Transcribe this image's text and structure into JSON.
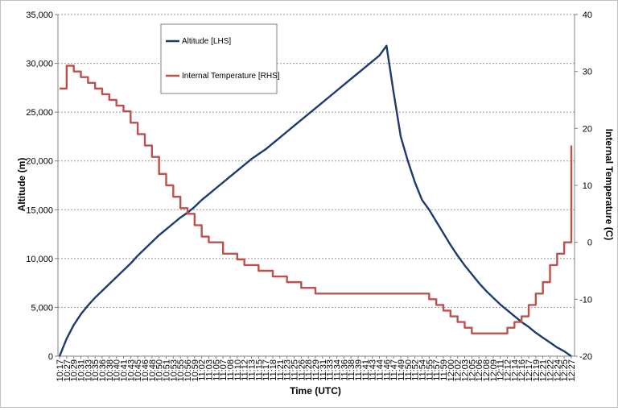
{
  "chart_data": {
    "type": "line",
    "xlabel": "Time (UTC)",
    "ylabel": "Altitude (m)",
    "y2label": "Internal Temperature (C)",
    "ylim": [
      0,
      35000
    ],
    "y2lim": [
      -20,
      40
    ],
    "yticks": [
      "0",
      "5,000",
      "10,000",
      "15,000",
      "20,000",
      "25,000",
      "30,000",
      "35,000"
    ],
    "y2ticks": [
      "-20",
      "-10",
      "0",
      "10",
      "20",
      "30",
      "40"
    ],
    "grid": true,
    "legend": "top-left",
    "x_ticks": [
      "10:17",
      "10:27",
      "10:29",
      "10:31",
      "10:33",
      "10:35",
      "10:36",
      "10:38",
      "10:40",
      "10:41",
      "10:43",
      "10:45",
      "10:46",
      "10:48",
      "10:50",
      "10:51",
      "10:53",
      "10:55",
      "10:56",
      "10:59",
      "11:02",
      "11:03",
      "11:05",
      "11:07",
      "11:08",
      "11:10",
      "11:12",
      "11:13",
      "11:15",
      "11:17",
      "11:18",
      "11:21",
      "11:23",
      "11:25",
      "11:26",
      "11:28",
      "11:29",
      "11:31",
      "11:33",
      "11:34",
      "11:36",
      "11:38",
      "11:39",
      "11:41",
      "11:43",
      "11:44",
      "11:46",
      "11:47",
      "11:49",
      "11:50",
      "11:52",
      "11:54",
      "11:55",
      "11:57",
      "11:59",
      "12:00",
      "12:02",
      "12:03",
      "12:05",
      "12:06",
      "12:08",
      "12:09",
      "12:11",
      "12:12",
      "12:14",
      "12:16",
      "12:17",
      "12:19",
      "12:21",
      "12:22",
      "12:24",
      "12:25",
      "12:27"
    ],
    "series": [
      {
        "name": "Altitude [LHS]",
        "axis": "left",
        "color": "#1f3a6e",
        "points": [
          [
            "10:17",
            0
          ],
          [
            "10:27",
            1800
          ],
          [
            "10:29",
            3200
          ],
          [
            "10:31",
            4300
          ],
          [
            "10:33",
            5200
          ],
          [
            "10:35",
            6000
          ],
          [
            "10:36",
            6700
          ],
          [
            "10:38",
            7400
          ],
          [
            "10:40",
            8100
          ],
          [
            "10:41",
            8800
          ],
          [
            "10:43",
            9500
          ],
          [
            "10:45",
            10300
          ],
          [
            "10:46",
            11000
          ],
          [
            "10:48",
            11700
          ],
          [
            "10:50",
            12400
          ],
          [
            "10:51",
            13000
          ],
          [
            "10:53",
            13600
          ],
          [
            "10:55",
            14200
          ],
          [
            "10:56",
            14700
          ],
          [
            "10:59",
            15300
          ],
          [
            "11:02",
            16000
          ],
          [
            "11:03",
            16600
          ],
          [
            "11:05",
            17200
          ],
          [
            "11:07",
            17800
          ],
          [
            "11:08",
            18400
          ],
          [
            "11:10",
            19000
          ],
          [
            "11:12",
            19600
          ],
          [
            "11:13",
            20200
          ],
          [
            "11:15",
            20700
          ],
          [
            "11:17",
            21200
          ],
          [
            "11:18",
            21800
          ],
          [
            "11:21",
            22400
          ],
          [
            "11:23",
            23000
          ],
          [
            "11:25",
            23600
          ],
          [
            "11:26",
            24200
          ],
          [
            "11:28",
            24800
          ],
          [
            "11:29",
            25400
          ],
          [
            "11:31",
            26000
          ],
          [
            "11:33",
            26600
          ],
          [
            "11:34",
            27200
          ],
          [
            "11:36",
            27800
          ],
          [
            "11:38",
            28400
          ],
          [
            "11:39",
            29000
          ],
          [
            "11:41",
            29600
          ],
          [
            "11:43",
            30200
          ],
          [
            "11:44",
            30800
          ],
          [
            "11:46",
            31800
          ],
          [
            "11:47",
            27000
          ],
          [
            "11:49",
            22500
          ],
          [
            "11:50",
            20000
          ],
          [
            "11:52",
            17800
          ],
          [
            "11:54",
            16000
          ],
          [
            "11:55",
            15000
          ],
          [
            "11:57",
            13800
          ],
          [
            "11:59",
            12600
          ],
          [
            "12:00",
            11400
          ],
          [
            "12:02",
            10300
          ],
          [
            "12:03",
            9300
          ],
          [
            "12:05",
            8400
          ],
          [
            "12:06",
            7500
          ],
          [
            "12:08",
            6700
          ],
          [
            "12:09",
            6000
          ],
          [
            "12:11",
            5300
          ],
          [
            "12:12",
            4700
          ],
          [
            "12:14",
            4100
          ],
          [
            "12:16",
            3500
          ],
          [
            "12:17",
            3000
          ],
          [
            "12:19",
            2400
          ],
          [
            "12:21",
            1900
          ],
          [
            "12:22",
            1400
          ],
          [
            "12:24",
            900
          ],
          [
            "12:25",
            500
          ],
          [
            "12:27",
            0
          ]
        ]
      },
      {
        "name": "Internal Temperature [RHS]",
        "axis": "right",
        "color": "#c0504d",
        "points": [
          [
            "10:17",
            27
          ],
          [
            "10:27",
            31
          ],
          [
            "10:29",
            30
          ],
          [
            "10:31",
            29
          ],
          [
            "10:33",
            28
          ],
          [
            "10:35",
            27
          ],
          [
            "10:36",
            26
          ],
          [
            "10:38",
            25
          ],
          [
            "10:40",
            24
          ],
          [
            "10:41",
            23
          ],
          [
            "10:43",
            21
          ],
          [
            "10:45",
            19
          ],
          [
            "10:46",
            17
          ],
          [
            "10:48",
            15
          ],
          [
            "10:50",
            12
          ],
          [
            "10:51",
            10
          ],
          [
            "10:53",
            8
          ],
          [
            "10:55",
            6
          ],
          [
            "10:56",
            5
          ],
          [
            "10:59",
            3
          ],
          [
            "11:02",
            1
          ],
          [
            "11:03",
            0
          ],
          [
            "11:05",
            0
          ],
          [
            "11:07",
            -2
          ],
          [
            "11:08",
            -2
          ],
          [
            "11:10",
            -3
          ],
          [
            "11:12",
            -4
          ],
          [
            "11:13",
            -4
          ],
          [
            "11:15",
            -5
          ],
          [
            "11:17",
            -5
          ],
          [
            "11:18",
            -6
          ],
          [
            "11:21",
            -6
          ],
          [
            "11:23",
            -7
          ],
          [
            "11:25",
            -7
          ],
          [
            "11:26",
            -8
          ],
          [
            "11:28",
            -8
          ],
          [
            "11:29",
            -9
          ],
          [
            "11:31",
            -9
          ],
          [
            "11:33",
            -9
          ],
          [
            "11:34",
            -9
          ],
          [
            "11:36",
            -9
          ],
          [
            "11:38",
            -9
          ],
          [
            "11:39",
            -9
          ],
          [
            "11:41",
            -9
          ],
          [
            "11:43",
            -9
          ],
          [
            "11:44",
            -9
          ],
          [
            "11:46",
            -9
          ],
          [
            "11:47",
            -9
          ],
          [
            "11:49",
            -9
          ],
          [
            "11:50",
            -9
          ],
          [
            "11:52",
            -9
          ],
          [
            "11:54",
            -9
          ],
          [
            "11:55",
            -10
          ],
          [
            "11:57",
            -11
          ],
          [
            "11:59",
            -12
          ],
          [
            "12:00",
            -13
          ],
          [
            "12:02",
            -14
          ],
          [
            "12:03",
            -15
          ],
          [
            "12:05",
            -16
          ],
          [
            "12:06",
            -16
          ],
          [
            "12:08",
            -16
          ],
          [
            "12:09",
            -16
          ],
          [
            "12:11",
            -16
          ],
          [
            "12:12",
            -15
          ],
          [
            "12:14",
            -14
          ],
          [
            "12:16",
            -13
          ],
          [
            "12:17",
            -11
          ],
          [
            "12:19",
            -9
          ],
          [
            "12:21",
            -7
          ],
          [
            "12:22",
            -4
          ],
          [
            "12:24",
            -2
          ],
          [
            "12:25",
            0
          ],
          [
            "12:27",
            17
          ]
        ]
      }
    ]
  }
}
